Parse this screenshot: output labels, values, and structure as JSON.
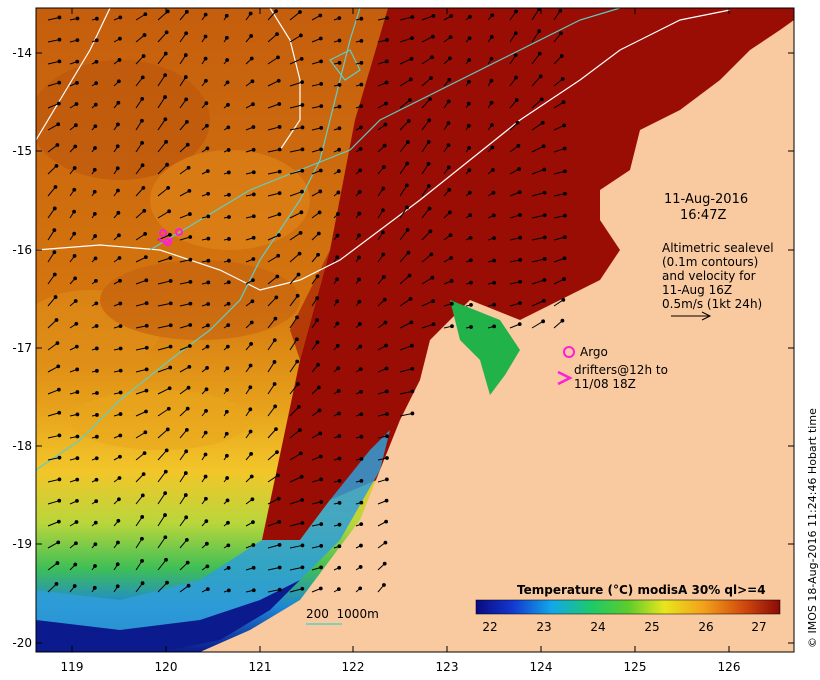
{
  "datetime": {
    "date": "11-Aug-2016",
    "time": "16:47Z"
  },
  "altimetry_note": [
    "Altimetric sealevel",
    "(0.1m contours)",
    "and velocity for",
    "11-Aug 16Z",
    "0.5m/s (1kt 24h)"
  ],
  "legend": {
    "argo_label": "Argo",
    "drifter_label_1": "drifters@12h to",
    "drifter_label_2": "11/08 18Z"
  },
  "depth_legend": "200  1000m",
  "colorbar": {
    "title": "Temperature (°C) modisA 30% ql>=4",
    "ticks": [
      "22",
      "23",
      "24",
      "25",
      "26",
      "27"
    ]
  },
  "axes": {
    "x_ticks": [
      "119",
      "120",
      "121",
      "122",
      "123",
      "124",
      "125",
      "126"
    ],
    "y_ticks": [
      "-14",
      "-15",
      "-16",
      "-17",
      "-18",
      "-19",
      "-20"
    ]
  },
  "credit": "© IMOS 18-Aug-2016 11:24:46 Hobart time",
  "colors": {
    "land": "#f9c9a0",
    "hot": "#9a0d05",
    "warm": "#d46a0f",
    "cool": "#1e52c7",
    "contour": "#ffffff",
    "isobath": "#5fcfc4",
    "marker": "#ff1fd6"
  }
}
